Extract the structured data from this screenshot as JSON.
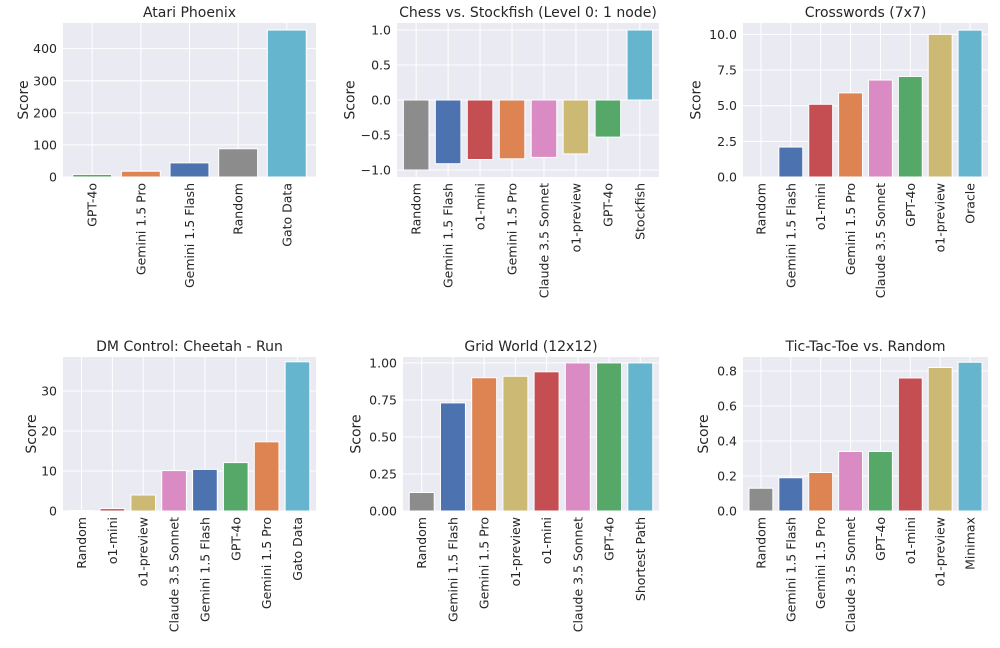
{
  "colors": {
    "background": "#eaeaf2",
    "grid": "#ffffff",
    "text": "#262626",
    "models": {
      "GPT-4o": "#55a868",
      "Gemini 1.5 Pro": "#dd8452",
      "Gemini 1.5 Flash": "#4c72b0",
      "Random": "#8c8c8c",
      "Gato Data": "#64b5cd",
      "o1-mini": "#c44e52",
      "Claude 3.5 Sonnet": "#da8bc3",
      "o1-preview": "#ccb974",
      "Stockfish": "#64b5cd",
      "Oracle": "#64b5cd",
      "Shortest Path": "#64b5cd",
      "Minimax": "#64b5cd"
    }
  },
  "chart_data": [
    {
      "type": "bar",
      "title": "Atari Phoenix",
      "xlabel": "",
      "ylabel": "Score",
      "ylim": [
        0,
        480
      ],
      "yticks": [
        0,
        100,
        200,
        300,
        400
      ],
      "ytick_labels": [
        "0",
        "100",
        "200",
        "300",
        "400"
      ],
      "grid": true,
      "categories": [
        "GPT-4o",
        "Gemini 1.5 Pro",
        "Gemini 1.5 Flash",
        "Random",
        "Gato Data"
      ],
      "values": [
        8,
        18,
        44,
        88,
        458
      ]
    },
    {
      "type": "bar",
      "title": "Chess vs. Stockfish (Level 0: 1 node)",
      "xlabel": "",
      "ylabel": "Score",
      "ylim": [
        -1.1,
        1.1
      ],
      "yticks": [
        -1.0,
        -0.5,
        0.0,
        0.5,
        1.0
      ],
      "ytick_labels": [
        "−1.0",
        "−0.5",
        "0.0",
        "0.5",
        "1.0"
      ],
      "grid": true,
      "categories": [
        "Random",
        "Gemini 1.5 Flash",
        "o1-mini",
        "Gemini 1.5 Pro",
        "Claude 3.5 Sonnet",
        "o1-preview",
        "GPT-4o",
        "Stockfish"
      ],
      "values": [
        -1.0,
        -0.91,
        -0.85,
        -0.84,
        -0.82,
        -0.77,
        -0.53,
        1.0
      ]
    },
    {
      "type": "bar",
      "title": "Crosswords (7x7)",
      "xlabel": "",
      "ylabel": "Score",
      "ylim": [
        0,
        10.8
      ],
      "yticks": [
        0.0,
        2.5,
        5.0,
        7.5,
        10.0
      ],
      "ytick_labels": [
        "0.0",
        "2.5",
        "5.0",
        "7.5",
        "10.0"
      ],
      "grid": true,
      "categories": [
        "Random",
        "Gemini 1.5 Flash",
        "o1-mini",
        "Gemini 1.5 Pro",
        "Claude 3.5 Sonnet",
        "GPT-4o",
        "o1-preview",
        "Oracle"
      ],
      "values": [
        0.0,
        2.1,
        5.1,
        5.9,
        6.8,
        7.05,
        10.0,
        10.3
      ]
    },
    {
      "type": "bar",
      "title": "DM Control: Cheetah - Run",
      "xlabel": "",
      "ylabel": "Score",
      "ylim": [
        0,
        38.5
      ],
      "yticks": [
        0,
        10,
        20,
        30
      ],
      "ytick_labels": [
        "0",
        "10",
        "20",
        "30"
      ],
      "grid": true,
      "categories": [
        "Random",
        "o1-mini",
        "o1-preview",
        "Claude 3.5 Sonnet",
        "Gemini 1.5 Flash",
        "GPT-4o",
        "Gemini 1.5 Pro",
        "Gato Data"
      ],
      "values": [
        0.1,
        0.6,
        4.0,
        10.1,
        10.4,
        12.1,
        17.3,
        37.3
      ]
    },
    {
      "type": "bar",
      "title": "Grid World (12x12)",
      "xlabel": "",
      "ylabel": "Score",
      "ylim": [
        0,
        1.04
      ],
      "yticks": [
        0.0,
        0.25,
        0.5,
        0.75,
        1.0
      ],
      "ytick_labels": [
        "0.00",
        "0.25",
        "0.50",
        "0.75",
        "1.00"
      ],
      "grid": true,
      "categories": [
        "Random",
        "Gemini 1.5 Flash",
        "Gemini 1.5 Pro",
        "o1-preview",
        "o1-mini",
        "Claude 3.5 Sonnet",
        "GPT-4o",
        "Shortest Path"
      ],
      "values": [
        0.125,
        0.73,
        0.9,
        0.91,
        0.94,
        1.0,
        1.0,
        1.0
      ]
    },
    {
      "type": "bar",
      "title": "Tic-Tac-Toe vs. Random",
      "xlabel": "",
      "ylabel": "Score",
      "ylim": [
        0,
        0.88
      ],
      "yticks": [
        0.0,
        0.2,
        0.4,
        0.6,
        0.8
      ],
      "ytick_labels": [
        "0.0",
        "0.2",
        "0.4",
        "0.6",
        "0.8"
      ],
      "grid": true,
      "categories": [
        "Random",
        "Gemini 1.5 Flash",
        "Gemini 1.5 Pro",
        "Claude 3.5 Sonnet",
        "GPT-4o",
        "o1-mini",
        "o1-preview",
        "Minimax"
      ],
      "values": [
        0.13,
        0.19,
        0.22,
        0.34,
        0.34,
        0.76,
        0.82,
        0.85
      ]
    }
  ]
}
